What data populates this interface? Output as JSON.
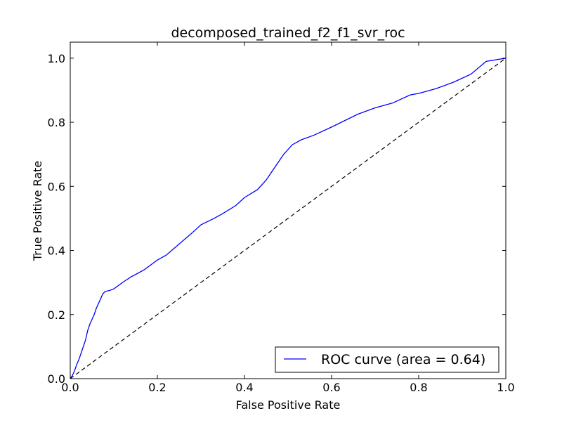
{
  "chart_data": {
    "type": "line",
    "title": "decomposed_trained_f2_f1_svr_roc",
    "xlabel": "False Positive Rate",
    "ylabel": "True Positive Rate",
    "xlim": [
      0.0,
      1.0
    ],
    "ylim": [
      0.0,
      1.05
    ],
    "xticks": [
      "0.0",
      "0.2",
      "0.4",
      "0.6",
      "0.8",
      "1.0"
    ],
    "yticks": [
      "0.0",
      "0.2",
      "0.4",
      "0.6",
      "0.8",
      "1.0"
    ],
    "grid": false,
    "legend_position": "lower-right",
    "series": [
      {
        "name": "ROC curve (area = 0.64)",
        "color": "#0000ff",
        "style": "solid",
        "x": [
          0.0,
          0.005,
          0.01,
          0.015,
          0.02,
          0.025,
          0.03,
          0.035,
          0.04,
          0.045,
          0.05,
          0.055,
          0.06,
          0.065,
          0.07,
          0.075,
          0.08,
          0.09,
          0.1,
          0.12,
          0.14,
          0.15,
          0.17,
          0.19,
          0.2,
          0.22,
          0.25,
          0.28,
          0.3,
          0.33,
          0.35,
          0.38,
          0.4,
          0.43,
          0.45,
          0.47,
          0.49,
          0.51,
          0.53,
          0.56,
          0.6,
          0.63,
          0.66,
          0.7,
          0.74,
          0.78,
          0.8,
          0.84,
          0.88,
          0.92,
          0.955,
          1.0
        ],
        "y": [
          0.0,
          0.01,
          0.025,
          0.045,
          0.06,
          0.08,
          0.1,
          0.12,
          0.15,
          0.17,
          0.185,
          0.2,
          0.22,
          0.235,
          0.25,
          0.265,
          0.272,
          0.275,
          0.28,
          0.3,
          0.318,
          0.325,
          0.34,
          0.36,
          0.37,
          0.385,
          0.42,
          0.455,
          0.48,
          0.5,
          0.515,
          0.54,
          0.565,
          0.59,
          0.62,
          0.66,
          0.7,
          0.73,
          0.745,
          0.76,
          0.785,
          0.805,
          0.825,
          0.845,
          0.86,
          0.885,
          0.89,
          0.905,
          0.925,
          0.95,
          0.99,
          1.0
        ]
      },
      {
        "name": "",
        "color": "#000000",
        "style": "dashed",
        "x": [
          0.0,
          1.0
        ],
        "y": [
          0.0,
          1.0
        ]
      }
    ]
  }
}
